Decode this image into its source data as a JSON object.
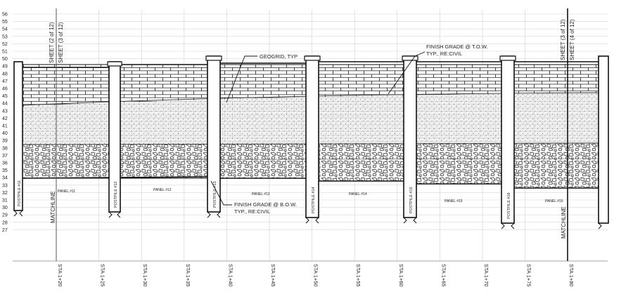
{
  "elevation_labels": [
    "56",
    "55",
    "54",
    "53",
    "52",
    "51",
    "50",
    "49",
    "48",
    "47",
    "46",
    "45",
    "44",
    "43",
    "42",
    "41",
    "40",
    "39",
    "38",
    "37",
    "36",
    "35",
    "34",
    "33",
    "32",
    "31",
    "30",
    "29",
    "28",
    "27"
  ],
  "stations": [
    "STA 1+20",
    "STA 1+25",
    "STA 1+30",
    "STA 1+35",
    "STA 1+40",
    "STA 1+45",
    "STA 1+50",
    "STA 1+55",
    "STA 1+60",
    "STA 1+65",
    "STA 1+70",
    "STA 1+75",
    "STA 1+80"
  ],
  "sheet_labels": {
    "left_a": "SHEET (2 of 12)",
    "left_b": "SHEET (3 of 12)",
    "right_a": "SHEET (3 of 12)",
    "right_b": "SHEET (4 of 12)"
  },
  "matchline": "MATCHLINE",
  "postpiles": [
    "POSTPILE #11",
    "POSTPILE #12",
    "POSTPILE #13",
    "POSTPILE #14",
    "POSTPILE #15",
    "POSTPILE #16"
  ],
  "panels": [
    "PANEL #11",
    "PANEL #12",
    "PANEL #13",
    "PANEL #14",
    "PANEL #15",
    "PANEL #16"
  ],
  "callouts": {
    "geogrid": "GEOGRID, TYP",
    "finish_tow_1": "FINISH GRADE @ T.O.W.",
    "finish_tow_2": "TYP., RE:CIVIL",
    "finish_bow_1": "FINISH GRADE @ B.O.W.",
    "finish_bow_2": "TYP., RE:CIVIL"
  }
}
